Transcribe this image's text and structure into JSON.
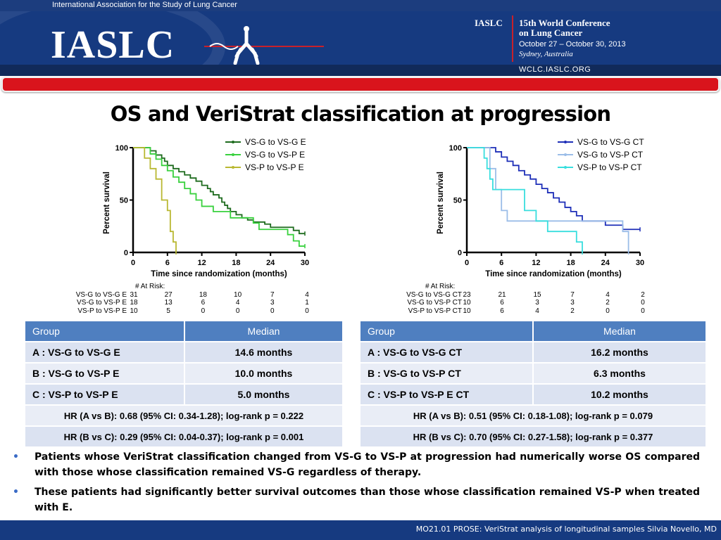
{
  "header": {
    "org_name": "International Association for the Study of Lung Cancer",
    "logo_text": "IASLC",
    "conf_abbr": "IASLC",
    "conf_title_1": "15th World Conference",
    "conf_title_2": "on Lung Cancer",
    "conf_dates": "October 27 – October 30, 2013",
    "conf_place": "Sydney, Australia",
    "conf_url": "WCLC.IASLC.ORG"
  },
  "title": "OS and VeriStrat classification at progression",
  "chart_data": [
    {
      "type": "line",
      "ylabel": "Percent survival",
      "xlabel": "Time since randomization (months)",
      "xlim": [
        0,
        30
      ],
      "ylim": [
        0,
        100
      ],
      "xticks": [
        "0",
        "6",
        "12",
        "18",
        "24",
        "30"
      ],
      "yticks": [
        "0",
        "50",
        "100"
      ],
      "legend_position": "top-right",
      "series": [
        {
          "name": "VS-G to VS-G E",
          "color": "#1e6b1e",
          "x": [
            0,
            2,
            3,
            4,
            5,
            5.5,
            6,
            7,
            8,
            9,
            10,
            11,
            12,
            13,
            13.5,
            14,
            15,
            15.5,
            16,
            16.5,
            17,
            18,
            19,
            20,
            21,
            23,
            24,
            25,
            26,
            27,
            28,
            29,
            30
          ],
          "y": [
            100,
            100,
            97,
            93,
            90,
            87,
            83,
            80,
            77,
            74,
            71,
            68,
            64,
            61,
            58,
            55,
            52,
            48,
            45,
            42,
            39,
            36,
            33,
            31,
            29,
            27,
            24,
            24,
            24,
            24,
            21,
            18,
            18
          ]
        },
        {
          "name": "VS-G to VS-P E",
          "color": "#39d13e",
          "x": [
            0,
            2,
            3,
            4,
            5,
            6,
            7,
            8,
            9,
            10,
            11,
            12,
            14,
            17,
            19,
            21,
            22,
            25,
            27,
            28,
            29,
            30
          ],
          "y": [
            100,
            100,
            94,
            89,
            83,
            78,
            72,
            67,
            61,
            56,
            50,
            44,
            39,
            33,
            33,
            28,
            22,
            22,
            17,
            11,
            6,
            6
          ]
        },
        {
          "name": "VS-P to VS-P E",
          "color": "#b9b832",
          "x": [
            0,
            2,
            3,
            4,
            5,
            6,
            6.5,
            7,
            7.5
          ],
          "y": [
            100,
            90,
            80,
            70,
            50,
            40,
            20,
            10,
            0
          ]
        }
      ],
      "at_risk": {
        "header": "# At Risk:",
        "times": [
          0,
          6,
          12,
          18,
          24,
          30
        ],
        "rows": [
          {
            "label": "VS-G to VS-G E",
            "values": [
              "31",
              "27",
              "18",
              "10",
              "7",
              "4"
            ]
          },
          {
            "label": "VS-G to VS-P E",
            "values": [
              "18",
              "13",
              "6",
              "4",
              "3",
              "1"
            ]
          },
          {
            "label": "VS-P to VS-P E",
            "values": [
              "10",
              "5",
              "0",
              "0",
              "0",
              "0"
            ]
          }
        ]
      }
    },
    {
      "type": "line",
      "ylabel": "Percent survival",
      "xlabel": "Time since randomization (months)",
      "xlim": [
        0,
        30
      ],
      "ylim": [
        0,
        100
      ],
      "xticks": [
        "0",
        "6",
        "12",
        "18",
        "24",
        "30"
      ],
      "yticks": [
        "0",
        "50",
        "100"
      ],
      "legend_position": "top-right",
      "series": [
        {
          "name": "VS-G to VS-G CT",
          "color": "#1e2fb8",
          "x": [
            0,
            4,
            5,
            6,
            7,
            8,
            9,
            10,
            11,
            12,
            13,
            14,
            15,
            16,
            17,
            18,
            19,
            20,
            24,
            27,
            30
          ],
          "y": [
            100,
            100,
            96,
            91,
            87,
            83,
            78,
            74,
            70,
            65,
            61,
            57,
            52,
            48,
            43,
            39,
            35,
            30,
            26,
            22,
            22
          ]
        },
        {
          "name": "VS-G to VS-P CT",
          "color": "#9bbde8",
          "x": [
            0,
            3,
            4,
            5,
            6,
            7,
            9,
            20,
            27,
            28
          ],
          "y": [
            100,
            100,
            80,
            60,
            40,
            30,
            30,
            30,
            20,
            0
          ]
        },
        {
          "name": "VS-P to VS-P CT",
          "color": "#38dede",
          "x": [
            0,
            3,
            3.5,
            4,
            4.5,
            7,
            10,
            12,
            14,
            19,
            20
          ],
          "y": [
            100,
            90,
            80,
            70,
            60,
            60,
            40,
            30,
            20,
            10,
            0
          ]
        }
      ],
      "at_risk": {
        "header": "# At Risk:",
        "times": [
          0,
          6,
          12,
          18,
          24,
          30
        ],
        "rows": [
          {
            "label": "VS-G to VS-G CT",
            "values": [
              "23",
              "21",
              "15",
              "7",
              "4",
              "2"
            ]
          },
          {
            "label": "VS-G to VS-P CT",
            "values": [
              "10",
              "6",
              "3",
              "3",
              "2",
              "0"
            ]
          },
          {
            "label": "VS-P to VS-P CT",
            "values": [
              "10",
              "6",
              "4",
              "2",
              "0",
              "0"
            ]
          }
        ]
      }
    }
  ],
  "table_left": {
    "col_group": "Group",
    "col_median": "Median",
    "rows": [
      {
        "group": "A : VS-G to VS-G E",
        "median": "14.6 months"
      },
      {
        "group": "B : VS-G to VS-P E",
        "median": "10.0 months"
      },
      {
        "group": "C : VS-P to VS-P E",
        "median": "5.0 months"
      }
    ],
    "hr": [
      "HR (A vs B): 0.68 (95% CI: 0.34-1.28);  log-rank p = 0.222",
      "HR (B vs C): 0.29 (95% CI: 0.04-0.37);  log-rank p = 0.001"
    ]
  },
  "table_right": {
    "col_group": "Group",
    "col_median": "Median",
    "rows": [
      {
        "group": "A : VS-G to VS-G CT",
        "median": "16.2  months"
      },
      {
        "group": "B : VS-G to VS-P  CT",
        "median": "6.3 months"
      },
      {
        "group": "C : VS-P to VS-P E CT",
        "median": "10.2 months"
      }
    ],
    "hr": [
      "HR (A vs B): 0.51 (95% CI: 0.18-1.08);  log-rank p = 0.079",
      "HR (B vs C): 0.70 (95% CI: 0.27-1.58);  log-rank p = 0.377"
    ]
  },
  "bullets": [
    "Patients whose VeriStrat classification changed from VS-G to VS-P at progression had numerically worse OS compared with those whose classification remained VS-G regardless of therapy.",
    "These patients had significantly better survival outcomes than those whose classification remained VS-P when treated with E."
  ],
  "bullet_marker": "•",
  "bullet_color": "#3a6bc6",
  "footer_text": "MO21.01 PROSE: VeriStrat analysis of longitudinal samples   Silvia  Novello, MD",
  "colors": {
    "header_blue": "#163a80",
    "accent_red": "#d9141c",
    "table_header": "#4f7fc0",
    "table_row_a": "#dbe2f1",
    "table_row_b": "#e9edf6"
  }
}
